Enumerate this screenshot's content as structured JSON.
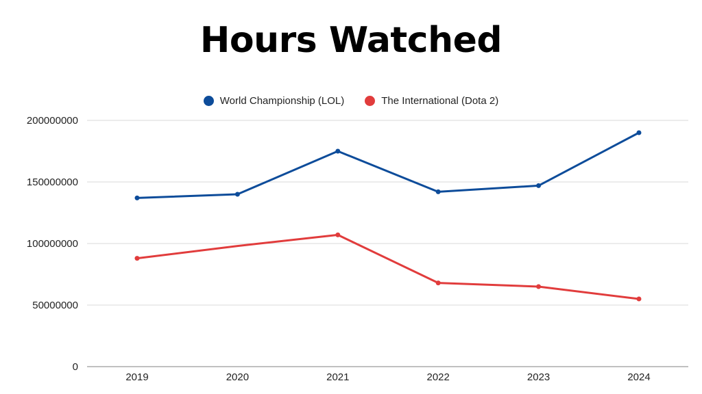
{
  "chart_data": {
    "type": "line",
    "title": "Hours Watched",
    "categories": [
      "2019",
      "2020",
      "2021",
      "2022",
      "2023",
      "2024"
    ],
    "series": [
      {
        "name": "World Championship (LOL)",
        "color": "#0d4c9a",
        "values": [
          137000000,
          140000000,
          175000000,
          142000000,
          147000000,
          190000000
        ]
      },
      {
        "name": "The International (Dota 2)",
        "color": "#e13c3c",
        "values": [
          88000000,
          null,
          107000000,
          68000000,
          65000000,
          55000000
        ],
        "note_x2020_value_on_line": 98000000
      }
    ],
    "ylim": [
      0,
      200000000
    ],
    "yticks": [
      "0",
      "50000000",
      "100000000",
      "150000000",
      "200000000"
    ],
    "grid": true,
    "legend_position": "top-center"
  }
}
